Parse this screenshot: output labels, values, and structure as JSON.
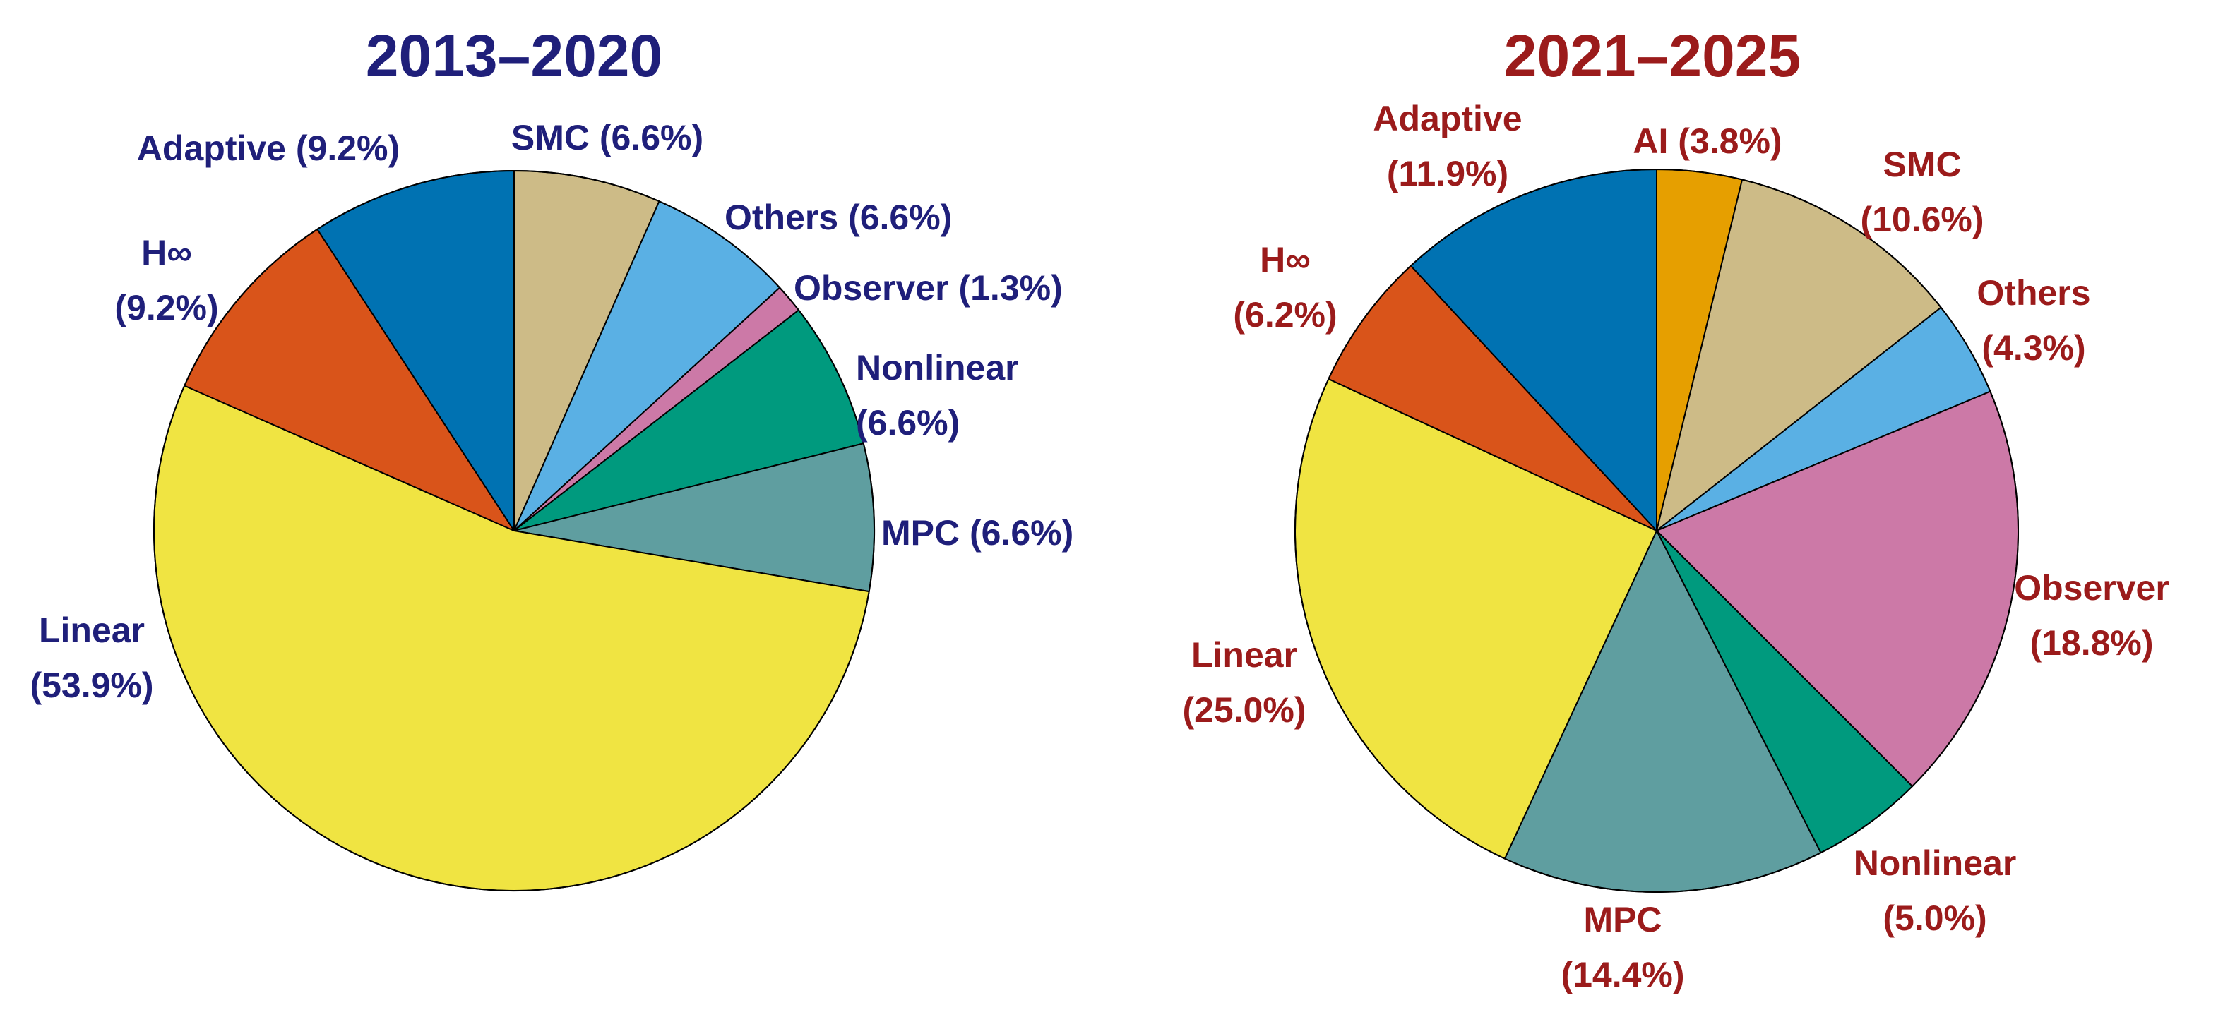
{
  "chart_data": [
    {
      "type": "pie",
      "title": "2013–2020",
      "title_color": "#1f1f7a",
      "label_color": "#1f1f7a",
      "start": "12 o'clock",
      "direction": "clockwise",
      "slices": [
        {
          "name": "SMC",
          "value": 6.6,
          "label": "SMC (6.6%)",
          "color": "#cdbb87"
        },
        {
          "name": "Others",
          "value": 6.6,
          "label": "Others (6.6%)",
          "color": "#5ab0e4"
        },
        {
          "name": "Observer",
          "value": 1.3,
          "label": "Observer (1.3%)",
          "color": "#cc79a7"
        },
        {
          "name": "Nonlinear",
          "value": 6.6,
          "label": [
            "Nonlinear",
            "(6.6%)"
          ],
          "color": "#009a7e"
        },
        {
          "name": "MPC",
          "value": 6.6,
          "label": "MPC (6.6%)",
          "color": "#5f9ea0"
        },
        {
          "name": "Linear",
          "value": 53.9,
          "label": [
            "Linear",
            "(53.9%)"
          ],
          "color": "#f0e442"
        },
        {
          "name": "H∞",
          "value": 9.2,
          "label": [
            "H∞",
            "(9.2%)"
          ],
          "color": "#d9541a"
        },
        {
          "name": "Adaptive",
          "value": 9.2,
          "label": "Adaptive (9.2%)",
          "color": "#0072b2"
        }
      ]
    },
    {
      "type": "pie",
      "title": "2021–2025",
      "title_color": "#9b1b1b",
      "label_color": "#9b1b1b",
      "start": "12 o'clock",
      "direction": "clockwise",
      "slices": [
        {
          "name": "AI",
          "value": 3.8,
          "label": "AI (3.8%)",
          "color": "#e69f00"
        },
        {
          "name": "SMC",
          "value": 10.6,
          "label": [
            "SMC",
            "(10.6%)"
          ],
          "color": "#cdbb87"
        },
        {
          "name": "Others",
          "value": 4.3,
          "label": [
            "Others",
            "(4.3%)"
          ],
          "color": "#5ab0e4"
        },
        {
          "name": "Observer",
          "value": 18.8,
          "label": [
            "Observer",
            "(18.8%)"
          ],
          "color": "#cc79a7"
        },
        {
          "name": "Nonlinear",
          "value": 5.0,
          "label": [
            "Nonlinear",
            "(5.0%)"
          ],
          "color": "#009a7e"
        },
        {
          "name": "MPC",
          "value": 14.4,
          "label": [
            "MPC",
            "(14.4%)"
          ],
          "color": "#5f9ea0"
        },
        {
          "name": "Linear",
          "value": 25.0,
          "label": [
            "Linear",
            "(25.0%)"
          ],
          "color": "#f0e442"
        },
        {
          "name": "H∞",
          "value": 6.2,
          "label": [
            "H∞",
            "(6.2%)"
          ],
          "color": "#d9541a"
        },
        {
          "name": "Adaptive",
          "value": 11.9,
          "label": [
            "Adaptive",
            "(11.9%)"
          ],
          "color": "#0072b2"
        }
      ]
    }
  ]
}
